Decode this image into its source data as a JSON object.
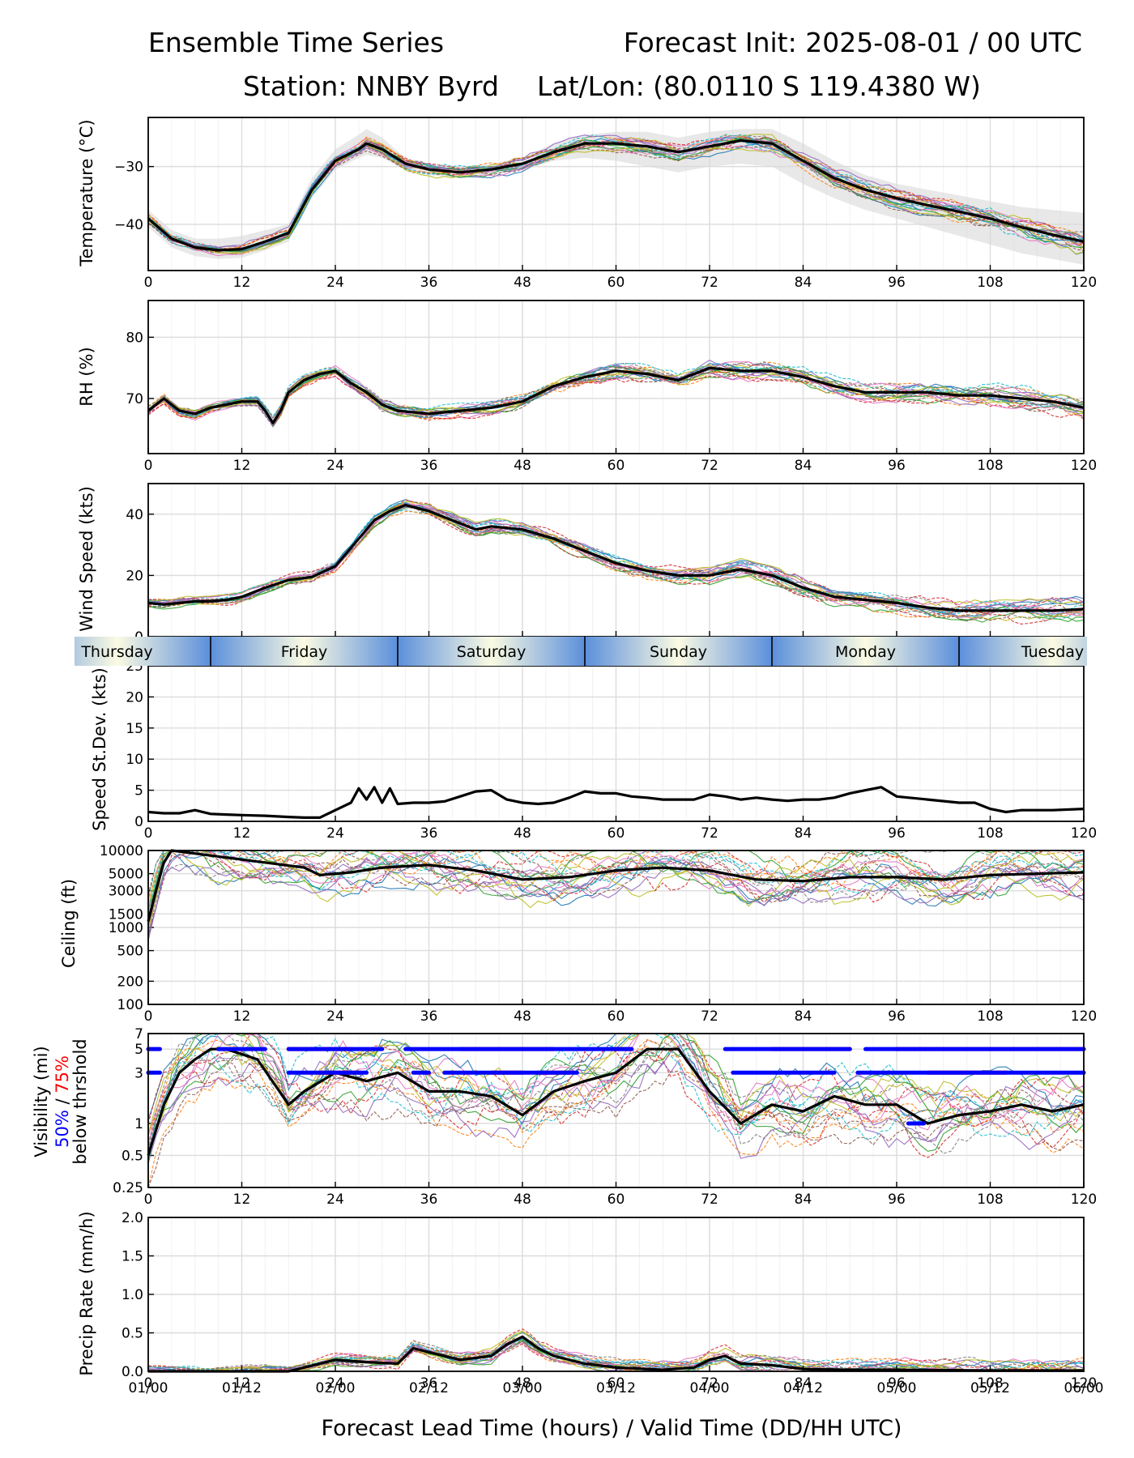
{
  "header": {
    "title_left": "Ensemble Time Series",
    "title_right": "Forecast Init: 2025-08-01 / 00 UTC",
    "station": "Station: NNBY Byrd",
    "latlon": "Lat/Lon: (80.0110 S 119.4380 W)"
  },
  "day_strip": [
    "Thursday",
    "Friday",
    "Saturday",
    "Sunday",
    "Monday",
    "Tuesday"
  ],
  "x_axis": {
    "xlabel": "Forecast Lead Time (hours) / Valid Time (DD/HH UTC)",
    "ticks": [
      0,
      12,
      24,
      36,
      48,
      60,
      72,
      84,
      96,
      108,
      120
    ],
    "valid_time_labels": [
      "01/00",
      "01/12",
      "02/00",
      "02/12",
      "03/00",
      "03/12",
      "04/00",
      "04/12",
      "05/00",
      "05/12",
      "06/00"
    ]
  },
  "colors": {
    "mean": "#000000",
    "day_night_gradient": [
      "#5b8fdb",
      "#fbfbe3"
    ],
    "vis_50pct": "#0000ff",
    "vis_75pct": "#ff0000",
    "members": [
      "#1f77b4",
      "#ff7f0e",
      "#2ca02c",
      "#d62728",
      "#9467bd",
      "#8c564b",
      "#e377c2",
      "#7f7f7f",
      "#bcbd22",
      "#17becf"
    ]
  },
  "chart_data": [
    {
      "type": "line",
      "ylabel": "Temperature (°C)",
      "yticks": [
        -30,
        -40
      ],
      "ylim": [
        -48,
        -21.5
      ],
      "x": [
        0,
        3,
        6,
        9,
        12,
        15,
        18,
        21,
        24,
        27,
        28,
        30,
        33,
        36,
        40,
        44,
        48,
        52,
        56,
        60,
        64,
        68,
        72,
        76,
        80,
        84,
        88,
        92,
        96,
        100,
        104,
        108,
        112,
        116,
        120
      ],
      "series": [
        {
          "role": "ensemble-mean",
          "values": [
            -39,
            -42.5,
            -44,
            -44.5,
            -44.3,
            -43,
            -41.5,
            -34,
            -29,
            -27,
            -26,
            -27,
            -29.5,
            -30.5,
            -31,
            -30.5,
            -29.5,
            -27.5,
            -26,
            -26,
            -26.5,
            -27.5,
            -26.5,
            -25.5,
            -26,
            -29,
            -32,
            -34,
            -35.5,
            -36.7,
            -37.8,
            -39,
            -40.5,
            -41.8,
            -43
          ]
        }
      ],
      "spread": {
        "low": [
          -40.5,
          -44,
          -45.5,
          -46,
          -45.8,
          -44.5,
          -43,
          -35.5,
          -30.5,
          -28.5,
          -28,
          -28.5,
          -30.5,
          -31.5,
          -32,
          -31.5,
          -30.5,
          -29,
          -28.5,
          -29,
          -30,
          -31,
          -30,
          -29.5,
          -30,
          -33,
          -35.5,
          -37.5,
          -39,
          -40.5,
          -42,
          -43.5,
          -45,
          -46,
          -47
        ],
        "high": [
          -37.5,
          -41,
          -42.5,
          -42.5,
          -42,
          -41,
          -40,
          -32,
          -27,
          -24.5,
          -23.5,
          -25,
          -28.5,
          -29.5,
          -30,
          -29.5,
          -28.5,
          -26,
          -24.5,
          -24,
          -24,
          -25,
          -24,
          -23.5,
          -23.5,
          -26,
          -29,
          -31.5,
          -33,
          -34,
          -35,
          -36,
          -37,
          -37.5,
          -38
        ]
      }
    },
    {
      "type": "line",
      "ylabel": "RH (%)",
      "yticks": [
        80,
        70
      ],
      "ylim": [
        61,
        86
      ],
      "x": [
        0,
        2,
        4,
        6,
        8,
        10,
        12,
        14,
        15,
        16,
        17,
        18,
        20,
        22,
        24,
        26,
        28,
        30,
        32,
        36,
        40,
        44,
        48,
        52,
        56,
        60,
        64,
        68,
        72,
        76,
        80,
        84,
        88,
        92,
        96,
        100,
        104,
        108,
        112,
        116,
        120
      ],
      "series": [
        {
          "role": "ensemble-mean",
          "values": [
            68,
            70,
            68,
            67.5,
            68.5,
            69,
            69.5,
            69.5,
            68,
            66,
            68,
            71,
            73,
            74,
            74.5,
            72.5,
            71,
            69,
            68,
            67.5,
            68,
            68.5,
            69.5,
            72,
            73.5,
            74.5,
            74,
            73,
            75,
            74.5,
            74.5,
            73.5,
            72,
            71,
            71,
            71,
            70.5,
            70.5,
            70,
            69.5,
            68.5
          ]
        }
      ]
    },
    {
      "type": "line",
      "ylabel": "Wind Speed (kts)",
      "yticks": [
        40,
        20,
        0
      ],
      "ylim": [
        0,
        50
      ],
      "x": [
        0,
        2,
        4,
        6,
        8,
        10,
        12,
        15,
        18,
        21,
        24,
        27,
        29,
        31,
        33,
        36,
        40,
        42,
        44,
        48,
        52,
        56,
        60,
        64,
        68,
        72,
        76,
        80,
        84,
        88,
        92,
        96,
        100,
        104,
        108,
        112,
        116,
        120
      ],
      "series": [
        {
          "role": "ensemble-mean",
          "values": [
            11,
            10.5,
            11,
            11.5,
            11.5,
            12,
            13,
            16,
            18.5,
            19.5,
            23,
            32,
            38,
            41,
            43,
            41,
            37,
            35,
            36,
            35,
            32,
            28,
            24,
            21.5,
            20,
            20,
            22,
            20,
            16,
            13,
            12,
            11,
            9.5,
            8.5,
            8.5,
            8.5,
            8.5,
            9
          ]
        }
      ]
    },
    {
      "type": "line",
      "ylabel": "Speed St.Dev. (kts)",
      "yticks": [
        25,
        20,
        15,
        10,
        5,
        0
      ],
      "ylim": [
        0,
        25
      ],
      "x": [
        0,
        2,
        4,
        6,
        8,
        10,
        12,
        15,
        18,
        20,
        22,
        24,
        26,
        27,
        28,
        29,
        30,
        31,
        32,
        34,
        36,
        38,
        40,
        42,
        44,
        46,
        48,
        50,
        52,
        54,
        56,
        58,
        60,
        62,
        64,
        66,
        68,
        70,
        72,
        74,
        76,
        78,
        80,
        82,
        84,
        86,
        88,
        90,
        92,
        94,
        96,
        100,
        104,
        106,
        108,
        110,
        112,
        116,
        120
      ],
      "series": [
        {
          "role": "ensemble-st-dev",
          "values": [
            1.5,
            1.3,
            1.3,
            1.8,
            1.2,
            1.1,
            1.0,
            0.9,
            0.7,
            0.6,
            0.6,
            1.8,
            3,
            5.3,
            3.5,
            5.5,
            3,
            5.3,
            2.8,
            3.0,
            3.0,
            3.2,
            4.0,
            4.8,
            5.0,
            3.5,
            3.0,
            2.8,
            3.0,
            3.8,
            4.8,
            4.5,
            4.5,
            4.0,
            3.8,
            3.5,
            3.5,
            3.5,
            4.3,
            4.0,
            3.5,
            3.8,
            3.5,
            3.3,
            3.5,
            3.5,
            3.8,
            4.5,
            5.0,
            5.5,
            4.0,
            3.5,
            3.0,
            3.0,
            2.0,
            1.5,
            1.8,
            1.8,
            2.0
          ]
        }
      ]
    },
    {
      "type": "line",
      "ylabel": "Ceiling (ft)",
      "yscale": "log",
      "yticks": [
        10000,
        5000,
        3000,
        1500,
        1000,
        500,
        200,
        100
      ],
      "ylim": [
        100,
        10000
      ],
      "x": [
        0,
        1,
        2,
        3,
        20,
        22,
        26,
        30,
        36,
        42,
        48,
        54,
        60,
        66,
        72,
        78,
        84,
        90,
        96,
        102,
        108,
        114,
        120
      ],
      "series": [
        {
          "role": "ensemble-mean",
          "values": [
            1200,
            3000,
            7000,
            10000,
            6000,
            4800,
            5200,
            6000,
            6500,
            5500,
            4200,
            4500,
            5500,
            6000,
            5500,
            4200,
            4000,
            4500,
            4500,
            4200,
            4800,
            5000,
            5200
          ]
        }
      ]
    },
    {
      "type": "line",
      "ylabel": "Visibility (mi)",
      "ylabel_50": "50%",
      "ylabel_sep": " / ",
      "ylabel_75": "75%",
      "ylabel_line3": "below thrshold",
      "yscale": "log",
      "yticks": [
        7,
        5,
        3,
        1,
        0.5,
        0.25
      ],
      "ylim": [
        0.25,
        7
      ],
      "x": [
        0,
        2,
        4,
        6,
        8,
        10,
        14,
        18,
        20,
        24,
        28,
        32,
        36,
        40,
        44,
        48,
        52,
        56,
        60,
        64,
        68,
        72,
        76,
        80,
        84,
        88,
        92,
        96,
        100,
        104,
        108,
        112,
        116,
        120
      ],
      "series": [
        {
          "role": "ensemble-mean",
          "values": [
            0.5,
            1.5,
            3,
            4,
            5,
            5,
            4,
            1.5,
            2,
            3,
            2.5,
            3,
            2,
            2,
            1.8,
            1.2,
            2,
            2.5,
            3,
            5,
            5,
            2,
            1,
            1.5,
            1.3,
            1.8,
            1.5,
            1.5,
            1,
            1.2,
            1.3,
            1.5,
            1.3,
            1.5
          ]
        }
      ],
      "threshold_50pct_below_5mi": [
        [
          0,
          1.5
        ],
        [
          9,
          15
        ],
        [
          18,
          30
        ],
        [
          33,
          62
        ],
        [
          74,
          90
        ],
        [
          92,
          120
        ]
      ],
      "threshold_75pct_below_5mi": [
        [
          18,
          26
        ],
        [
          40,
          52
        ],
        [
          60,
          62
        ],
        [
          80,
          90
        ],
        [
          96,
          120
        ]
      ],
      "threshold_50pct_below_3mi": [
        [
          0,
          1.5
        ],
        [
          18,
          28
        ],
        [
          34,
          36
        ],
        [
          38,
          55
        ],
        [
          75,
          88
        ],
        [
          91,
          120
        ]
      ],
      "threshold_75pct_below_3mi": [
        [
          22,
          27
        ],
        [
          44,
          48
        ],
        [
          50,
          54
        ],
        [
          100,
          110
        ]
      ],
      "threshold_50pct_below_1mi": [
        [
          97.5,
          99.5
        ]
      ]
    },
    {
      "type": "line",
      "ylabel": "Precip Rate (mm/h)",
      "yticks": [
        2.0,
        1.5,
        1.0,
        0.5,
        0.0
      ],
      "ylim": [
        0,
        2.0
      ],
      "x": [
        0,
        12,
        18,
        20,
        24,
        28,
        32,
        34,
        36,
        40,
        44,
        46,
        48,
        50,
        52,
        56,
        60,
        66,
        70,
        72,
        74,
        76,
        80,
        84,
        90,
        96,
        108,
        120
      ],
      "series": [
        {
          "role": "ensemble-mean",
          "values": [
            0,
            0,
            0,
            0.05,
            0.15,
            0.12,
            0.1,
            0.3,
            0.25,
            0.15,
            0.2,
            0.35,
            0.45,
            0.3,
            0.2,
            0.1,
            0.05,
            0.02,
            0.05,
            0.15,
            0.2,
            0.1,
            0.08,
            0.03,
            0.02,
            0.02,
            0.01,
            0.01
          ]
        }
      ]
    }
  ]
}
